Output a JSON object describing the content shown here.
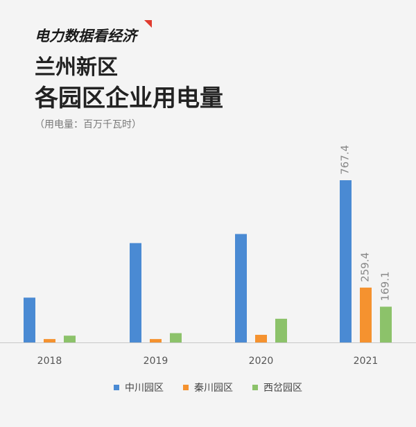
{
  "brand": "电力数据看经济",
  "title_line1": "兰州新区",
  "title_line2": "各园区企业用电量",
  "unit_note": "（用电量：百万千瓦时）",
  "chart_data": {
    "type": "bar",
    "title": "兰州新区各园区企业用电量",
    "ylabel": "用电量：百万千瓦时",
    "categories": [
      "2018",
      "2019",
      "2020",
      "2021"
    ],
    "series": [
      {
        "name": "中川园区",
        "color": "#4a8ad3",
        "values": [
          212,
          470,
          513,
          767.4
        ]
      },
      {
        "name": "秦川园区",
        "color": "#f5922f",
        "values": [
          16,
          16,
          36,
          259.4
        ]
      },
      {
        "name": "西岔园区",
        "color": "#8cc26a",
        "values": [
          32,
          44,
          112,
          169.1
        ]
      }
    ],
    "data_labels": [
      {
        "series": 0,
        "category": 3,
        "text": "767.4"
      },
      {
        "series": 1,
        "category": 3,
        "text": "259.4"
      },
      {
        "series": 2,
        "category": 3,
        "text": "169.1"
      }
    ],
    "ylim": [
      0,
      767.4
    ],
    "grid": false,
    "legend_position": "bottom"
  }
}
